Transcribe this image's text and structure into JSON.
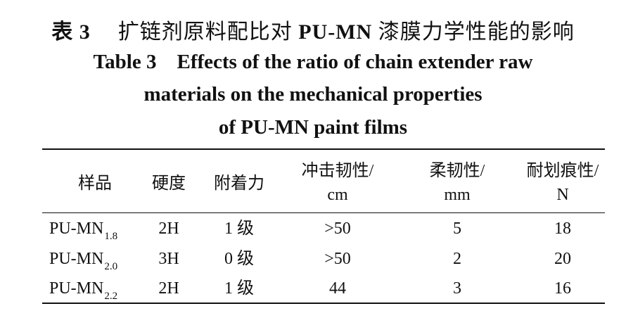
{
  "caption": {
    "cn_label": "表 3",
    "cn_text_a": "扩链剂原料配比对",
    "cn_bold": "PU-MN",
    "cn_text_b": "漆膜力学性能的影响",
    "en_line1": "Table 3    Effects of the ratio of chain extender raw",
    "en_line2": "materials on the mechanical properties",
    "en_line3": "of PU-MN paint films"
  },
  "table": {
    "headers": [
      {
        "line1": "样品",
        "line2": ""
      },
      {
        "line1": "硬度",
        "line2": ""
      },
      {
        "line1": "附着力",
        "line2": ""
      },
      {
        "line1": "冲击韧性/",
        "line2": "cm"
      },
      {
        "line1": "柔韧性/",
        "line2": "mm"
      },
      {
        "line1": "耐划痕性/",
        "line2": "N"
      }
    ],
    "rows": [
      {
        "sample": "PU-MN",
        "sub": "1.8",
        "hardness": "2H",
        "adhesion": "1 级",
        "impact": ">50",
        "flex": "5",
        "scratch": "18"
      },
      {
        "sample": "PU-MN",
        "sub": "2.0",
        "hardness": "3H",
        "adhesion": "0 级",
        "impact": ">50",
        "flex": "2",
        "scratch": "20"
      },
      {
        "sample": "PU-MN",
        "sub": "2.2",
        "hardness": "2H",
        "adhesion": "1 级",
        "impact": "44",
        "flex": "3",
        "scratch": "16"
      }
    ]
  }
}
